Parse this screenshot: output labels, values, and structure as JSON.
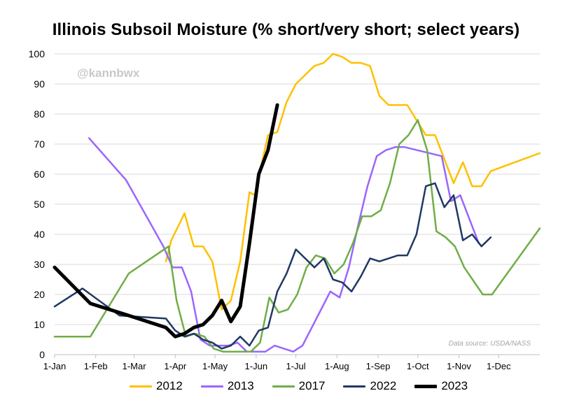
{
  "chart_data": {
    "type": "line",
    "title": "Illinois Subsoil Moisture (% short/very short; select years)",
    "watermark": "@kannbwx",
    "source_note": "Data source: USDA/NASS",
    "ylim": [
      0,
      100
    ],
    "yticks": [
      "0",
      "10",
      "20",
      "30",
      "40",
      "50",
      "60",
      "70",
      "80",
      "90",
      "100"
    ],
    "xlim_day_of_year": [
      0,
      366
    ],
    "xticks": [
      {
        "label": "1-Jan",
        "day": 0
      },
      {
        "label": "1-Feb",
        "day": 31
      },
      {
        "label": "1-Mar",
        "day": 60
      },
      {
        "label": "1-Apr",
        "day": 91
      },
      {
        "label": "1-May",
        "day": 121
      },
      {
        "label": "1-Jun",
        "day": 152
      },
      {
        "label": "1-Jul",
        "day": 182
      },
      {
        "label": "1-Aug",
        "day": 213
      },
      {
        "label": "1-Sep",
        "day": 244
      },
      {
        "label": "1-Oct",
        "day": 274
      },
      {
        "label": "1-Nov",
        "day": 305
      },
      {
        "label": "1-Dec",
        "day": 335
      }
    ],
    "series": [
      {
        "name": "2012",
        "color": "#FFC000",
        "stroke": "2.5",
        "points": [
          [
            84,
            31
          ],
          [
            88,
            38
          ],
          [
            98,
            47
          ],
          [
            105,
            36
          ],
          [
            112,
            36
          ],
          [
            119,
            31
          ],
          [
            126,
            15
          ],
          [
            133,
            18
          ],
          [
            140,
            31
          ],
          [
            147,
            54
          ],
          [
            151,
            53
          ],
          [
            161,
            73
          ],
          [
            168,
            74
          ],
          [
            175,
            84
          ],
          [
            182,
            90
          ],
          [
            189,
            93
          ],
          [
            196,
            96
          ],
          [
            203,
            97
          ],
          [
            210,
            100
          ],
          [
            217,
            99
          ],
          [
            224,
            97
          ],
          [
            231,
            97
          ],
          [
            238,
            96
          ],
          [
            245,
            86
          ],
          [
            252,
            83
          ],
          [
            259,
            83
          ],
          [
            266,
            83
          ],
          [
            273,
            78
          ],
          [
            280,
            73
          ],
          [
            287,
            73
          ],
          [
            294,
            65
          ],
          [
            301,
            57
          ],
          [
            308,
            64
          ],
          [
            315,
            56
          ],
          [
            322,
            56
          ],
          [
            329,
            61
          ],
          [
            366,
            67
          ]
        ]
      },
      {
        "name": "2013",
        "color": "#9966FF",
        "stroke": "2.5",
        "points": [
          [
            26,
            72
          ],
          [
            54,
            58
          ],
          [
            82,
            36
          ],
          [
            89,
            29
          ],
          [
            96,
            29
          ],
          [
            103,
            21
          ],
          [
            110,
            5
          ],
          [
            117,
            3
          ],
          [
            124,
            3
          ],
          [
            131,
            3
          ],
          [
            138,
            4
          ],
          [
            145,
            1
          ],
          [
            152,
            1
          ],
          [
            159,
            1
          ],
          [
            166,
            3
          ],
          [
            173,
            2
          ],
          [
            180,
            1
          ],
          [
            187,
            3
          ],
          [
            194,
            9
          ],
          [
            201,
            15
          ],
          [
            208,
            21
          ],
          [
            215,
            19
          ],
          [
            222,
            29
          ],
          [
            229,
            43
          ],
          [
            236,
            56
          ],
          [
            243,
            66
          ],
          [
            250,
            68
          ],
          [
            257,
            69
          ],
          [
            264,
            69
          ],
          [
            292,
            66
          ],
          [
            299,
            51
          ],
          [
            306,
            53
          ],
          [
            313,
            45
          ],
          [
            320,
            37
          ]
        ]
      },
      {
        "name": "2017",
        "color": "#70AD47",
        "stroke": "2.5",
        "points": [
          [
            0,
            6
          ],
          [
            27,
            6
          ],
          [
            56,
            27
          ],
          [
            86,
            36
          ],
          [
            92,
            18
          ],
          [
            99,
            6
          ],
          [
            106,
            7
          ],
          [
            113,
            6
          ],
          [
            120,
            2
          ],
          [
            127,
            1
          ],
          [
            134,
            1
          ],
          [
            141,
            1
          ],
          [
            148,
            1
          ],
          [
            155,
            4
          ],
          [
            162,
            19
          ],
          [
            169,
            14
          ],
          [
            176,
            15
          ],
          [
            183,
            20
          ],
          [
            190,
            29
          ],
          [
            197,
            33
          ],
          [
            204,
            32
          ],
          [
            211,
            27
          ],
          [
            218,
            30
          ],
          [
            225,
            37
          ],
          [
            232,
            46
          ],
          [
            239,
            46
          ],
          [
            246,
            48
          ],
          [
            253,
            57
          ],
          [
            260,
            70
          ],
          [
            267,
            73
          ],
          [
            274,
            78
          ],
          [
            281,
            68
          ],
          [
            288,
            41
          ],
          [
            295,
            39
          ],
          [
            302,
            36
          ],
          [
            309,
            29
          ],
          [
            323,
            20
          ],
          [
            330,
            20
          ],
          [
            366,
            42
          ]
        ]
      },
      {
        "name": "2022",
        "color": "#203864",
        "stroke": "2.5",
        "points": [
          [
            0,
            16
          ],
          [
            21,
            22
          ],
          [
            49,
            13
          ],
          [
            84,
            12
          ],
          [
            91,
            8
          ],
          [
            98,
            6
          ],
          [
            105,
            7
          ],
          [
            112,
            5
          ],
          [
            119,
            4
          ],
          [
            126,
            2
          ],
          [
            133,
            3
          ],
          [
            140,
            6
          ],
          [
            147,
            3
          ],
          [
            154,
            8
          ],
          [
            161,
            9
          ],
          [
            168,
            21
          ],
          [
            175,
            27
          ],
          [
            182,
            35
          ],
          [
            189,
            32
          ],
          [
            196,
            29
          ],
          [
            203,
            32
          ],
          [
            210,
            25
          ],
          [
            217,
            24
          ],
          [
            224,
            21
          ],
          [
            231,
            26
          ],
          [
            238,
            32
          ],
          [
            245,
            31
          ],
          [
            252,
            32
          ],
          [
            259,
            33
          ],
          [
            266,
            33
          ],
          [
            273,
            40
          ],
          [
            280,
            56
          ],
          [
            287,
            57
          ],
          [
            294,
            49
          ],
          [
            301,
            53
          ],
          [
            308,
            38
          ],
          [
            315,
            40
          ],
          [
            322,
            36
          ],
          [
            329,
            39
          ]
        ]
      },
      {
        "name": "2023",
        "color": "#000000",
        "stroke": "5",
        "points": [
          [
            0,
            29
          ],
          [
            27,
            17
          ],
          [
            56,
            13
          ],
          [
            84,
            9
          ],
          [
            91,
            6
          ],
          [
            98,
            7
          ],
          [
            105,
            9
          ],
          [
            112,
            10
          ],
          [
            119,
            13
          ],
          [
            126,
            18
          ],
          [
            133,
            11
          ],
          [
            140,
            16
          ],
          [
            147,
            37
          ],
          [
            154,
            60
          ],
          [
            161,
            68
          ],
          [
            168,
            83
          ]
        ]
      }
    ]
  }
}
